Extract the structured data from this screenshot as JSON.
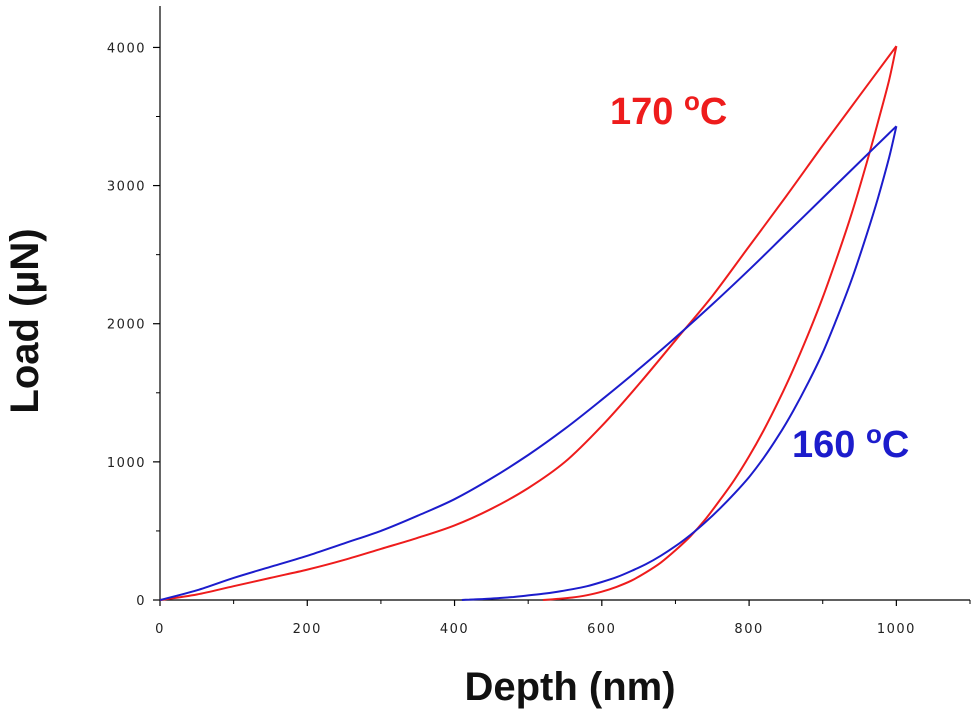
{
  "chart_data": {
    "type": "line",
    "title": "",
    "xlabel": "Depth (nm)",
    "ylabel": "Load (µN)",
    "xlim": [
      0,
      1100
    ],
    "ylim": [
      0,
      4300
    ],
    "xticks": [
      0,
      200,
      400,
      600,
      800,
      1000
    ],
    "yticks": [
      0,
      1000,
      2000,
      3000,
      4000
    ],
    "xtick_labels": [
      "0",
      "200",
      "400",
      "600",
      "800",
      "1000"
    ],
    "ytick_labels": [
      "0",
      "1000",
      "2000",
      "3000",
      "4000"
    ],
    "grid": false,
    "legend": "none",
    "series": [
      {
        "label_main": "170 ",
        "label_sup": "o",
        "label_unit": "C",
        "color": "#ee1c1c",
        "loading": {
          "x": [
            0,
            50,
            100,
            150,
            200,
            250,
            300,
            350,
            400,
            450,
            500,
            550,
            600,
            650,
            700,
            750,
            800,
            850,
            900,
            950,
            1000
          ],
          "y": [
            0,
            40,
            100,
            160,
            220,
            290,
            370,
            450,
            540,
            660,
            810,
            1000,
            1260,
            1560,
            1880,
            2200,
            2560,
            2920,
            3290,
            3650,
            4010
          ]
        },
        "unloading": {
          "x": [
            1000,
            990,
            975,
            960,
            940,
            920,
            900,
            880,
            860,
            840,
            820,
            800,
            780,
            760,
            740,
            720,
            700,
            680,
            660,
            640,
            620,
            600,
            580,
            560,
            540,
            520
          ],
          "y": [
            4010,
            3760,
            3460,
            3170,
            2810,
            2490,
            2190,
            1920,
            1670,
            1440,
            1230,
            1040,
            870,
            720,
            580,
            460,
            360,
            270,
            200,
            140,
            95,
            60,
            35,
            18,
            8,
            0
          ]
        }
      },
      {
        "label_main": "160 ",
        "label_sup": "o",
        "label_unit": "C",
        "color": "#1c1ccc",
        "loading": {
          "x": [
            0,
            50,
            100,
            150,
            200,
            250,
            300,
            350,
            400,
            450,
            500,
            550,
            600,
            650,
            700,
            750,
            800,
            850,
            900,
            950,
            1000
          ],
          "y": [
            0,
            70,
            160,
            240,
            320,
            410,
            500,
            610,
            730,
            880,
            1050,
            1240,
            1450,
            1670,
            1900,
            2140,
            2390,
            2650,
            2910,
            3170,
            3430
          ]
        },
        "unloading": {
          "x": [
            1000,
            990,
            975,
            960,
            940,
            920,
            900,
            880,
            860,
            840,
            820,
            800,
            780,
            760,
            740,
            720,
            700,
            680,
            660,
            640,
            620,
            600,
            580,
            560,
            540,
            520,
            500,
            480,
            460,
            440,
            420,
            410
          ],
          "y": [
            3430,
            3200,
            2910,
            2650,
            2330,
            2050,
            1790,
            1570,
            1370,
            1190,
            1030,
            890,
            770,
            660,
            560,
            470,
            390,
            320,
            260,
            210,
            165,
            130,
            100,
            78,
            60,
            45,
            33,
            22,
            14,
            7,
            3,
            0
          ]
        }
      }
    ]
  }
}
